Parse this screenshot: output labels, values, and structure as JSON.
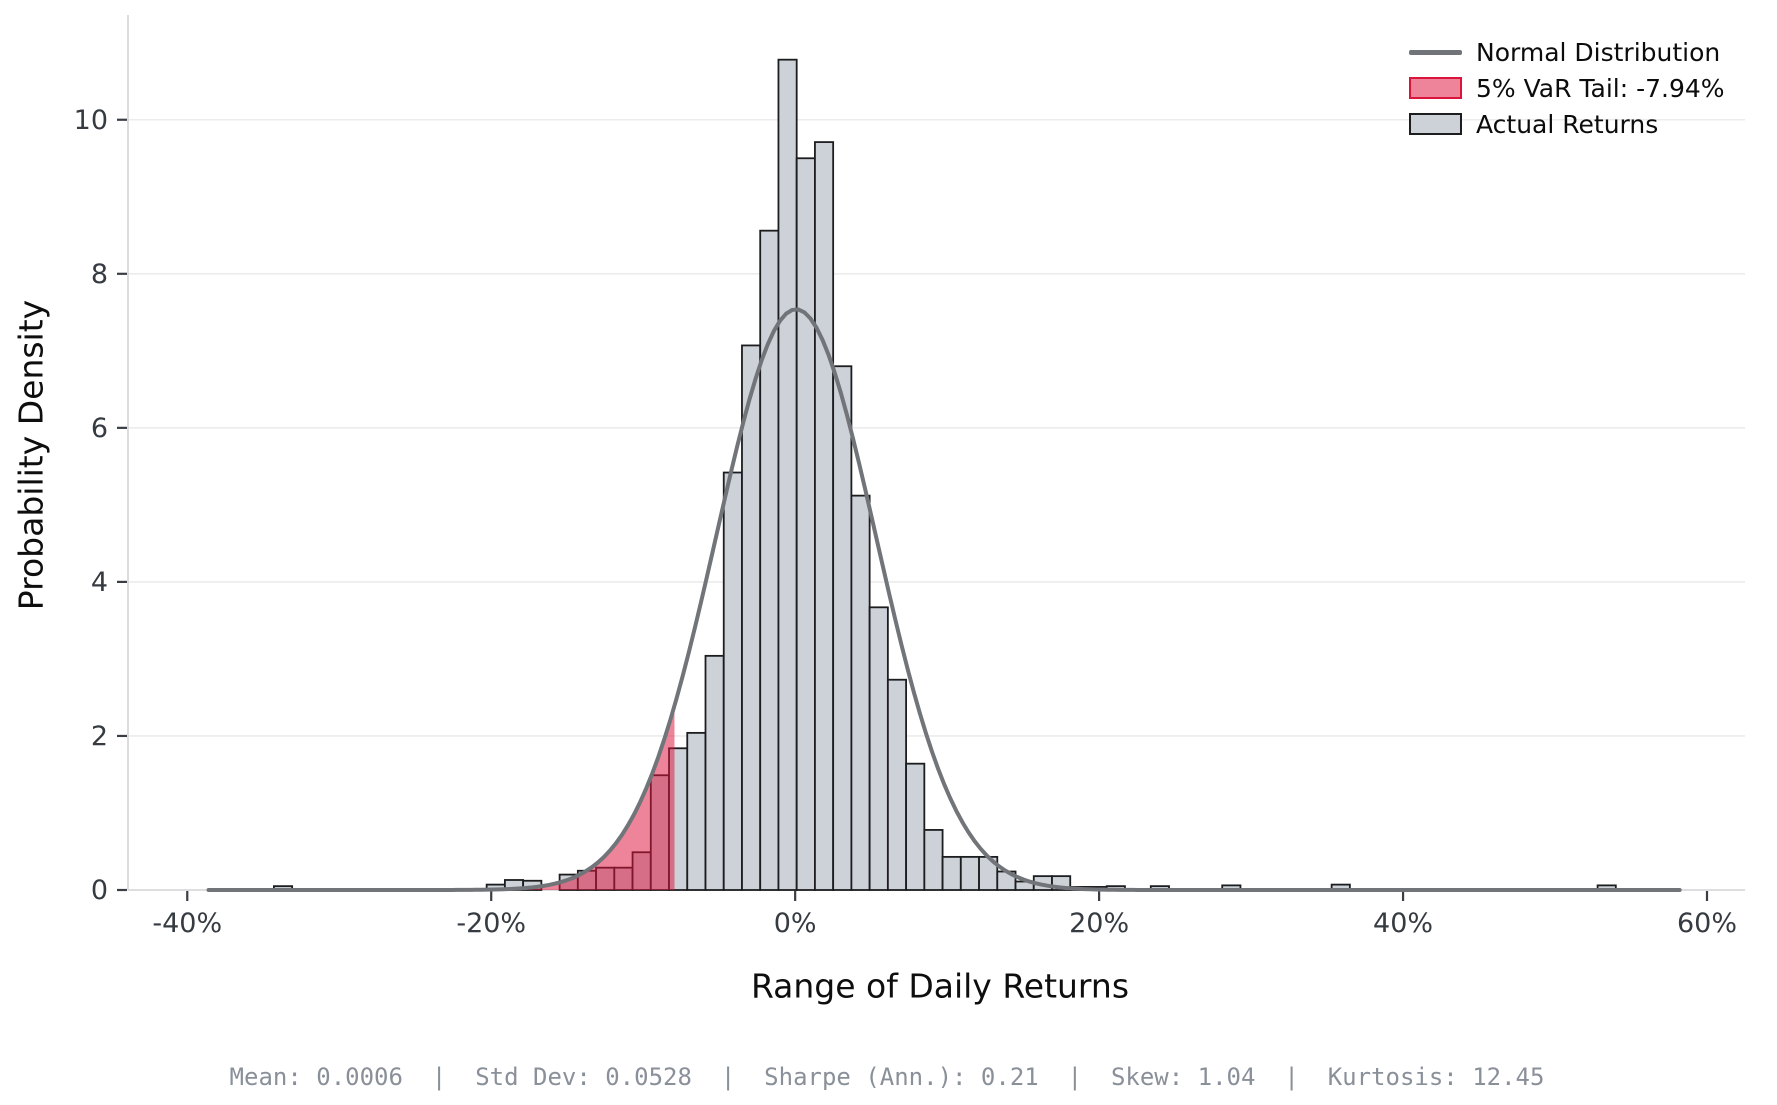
{
  "chart_data": {
    "type": "bar",
    "subtype": "histogram-with-normal-overlay",
    "title": "",
    "xlabel": "Range of Daily Returns",
    "ylabel": "Probability Density",
    "xlim": [
      -43.9,
      62.5
    ],
    "ylim": [
      0,
      11.36
    ],
    "grid": "horizontal-only",
    "legend_position": "upper-right",
    "x_ticks": [
      {
        "value": -40,
        "label": "-40%"
      },
      {
        "value": -20,
        "label": "-20%"
      },
      {
        "value": 0,
        "label": "0%"
      },
      {
        "value": 20,
        "label": "20%"
      },
      {
        "value": 40,
        "label": "40%"
      },
      {
        "value": 60,
        "label": "60%"
      }
    ],
    "y_ticks": [
      {
        "value": 0,
        "label": "0"
      },
      {
        "value": 2,
        "label": "2"
      },
      {
        "value": 4,
        "label": "4"
      },
      {
        "value": 6,
        "label": "6"
      },
      {
        "value": 8,
        "label": "8"
      },
      {
        "value": 10,
        "label": "10"
      }
    ],
    "bin_width_pct": 1.2,
    "bars": [
      {
        "x0": -34.3,
        "h": 0.05
      },
      {
        "x0": -20.3,
        "h": 0.07
      },
      {
        "x0": -19.1,
        "h": 0.13
      },
      {
        "x0": -17.9,
        "h": 0.12
      },
      {
        "x0": -15.5,
        "h": 0.2
      },
      {
        "x0": -14.3,
        "h": 0.25
      },
      {
        "x0": -13.1,
        "h": 0.29
      },
      {
        "x0": -11.9,
        "h": 0.29
      },
      {
        "x0": -10.7,
        "h": 0.49
      },
      {
        "x0": -9.5,
        "h": 1.49
      },
      {
        "x0": -8.3,
        "h": 1.84
      },
      {
        "x0": -7.1,
        "h": 2.04
      },
      {
        "x0": -5.9,
        "h": 3.04
      },
      {
        "x0": -4.7,
        "h": 5.42
      },
      {
        "x0": -3.5,
        "h": 7.07
      },
      {
        "x0": -2.3,
        "h": 8.56
      },
      {
        "x0": -1.1,
        "h": 10.78
      },
      {
        "x0": 0.1,
        "h": 9.5
      },
      {
        "x0": 1.3,
        "h": 9.71
      },
      {
        "x0": 2.5,
        "h": 6.8
      },
      {
        "x0": 3.7,
        "h": 5.12
      },
      {
        "x0": 4.9,
        "h": 3.67
      },
      {
        "x0": 6.1,
        "h": 2.73
      },
      {
        "x0": 7.3,
        "h": 1.64
      },
      {
        "x0": 8.5,
        "h": 0.78
      },
      {
        "x0": 9.7,
        "h": 0.43
      },
      {
        "x0": 10.9,
        "h": 0.43
      },
      {
        "x0": 12.1,
        "h": 0.43
      },
      {
        "x0": 13.3,
        "h": 0.24
      },
      {
        "x0": 14.5,
        "h": 0.11
      },
      {
        "x0": 15.7,
        "h": 0.18
      },
      {
        "x0": 16.9,
        "h": 0.18
      },
      {
        "x0": 18.1,
        "h": 0.04
      },
      {
        "x0": 19.3,
        "h": 0.04
      },
      {
        "x0": 20.5,
        "h": 0.05
      },
      {
        "x0": 23.4,
        "h": 0.05
      },
      {
        "x0": 28.1,
        "h": 0.06
      },
      {
        "x0": 35.3,
        "h": 0.07
      },
      {
        "x0": 52.8,
        "h": 0.06
      }
    ],
    "normal_curve": {
      "mean_pct": 0.06,
      "std_pct": 5.28,
      "peak_density": 7.54,
      "x_start": -38.6,
      "x_end": 58.5
    },
    "var_threshold_pct": -7.94,
    "legend": [
      {
        "kind": "line",
        "label": "Normal Distribution"
      },
      {
        "kind": "patch",
        "label": "5% VaR Tail: -7.94%"
      },
      {
        "kind": "patch",
        "label": "Actual Returns"
      }
    ],
    "stats_line": "Mean: 0.0006  |  Std Dev: 0.0528  |  Sharpe (Ann.): 0.21  |  Skew: 1.04  |  Kurtosis: 12.45",
    "colors": {
      "bar_fill": "#cdd1d8",
      "bar_edge": "#1c1d1f",
      "curve": "#717478",
      "var_fill": "rgba(220,20,60,0.52)",
      "var_edge": "#dc143c",
      "grid": "#ececec",
      "spine": "#d3d4d6",
      "tick_mark": "#3a3e44",
      "tick_label": "#363b42",
      "background": "#ffffff"
    }
  }
}
